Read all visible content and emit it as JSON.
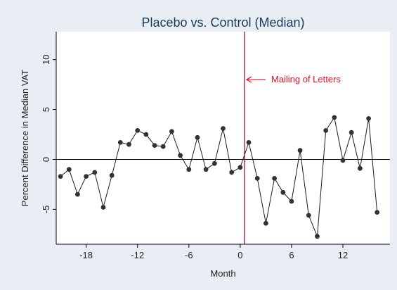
{
  "chart_data": {
    "type": "line",
    "title": "Placebo vs. Control (Median)",
    "xlabel": "Month",
    "ylabel": "Percent Difference in Median VAT",
    "xlim": [
      -21.5,
      17.5
    ],
    "ylim": [
      -8.5,
      12.8
    ],
    "xticks": [
      -18,
      -12,
      -6,
      0,
      6,
      12
    ],
    "yticks": [
      -5,
      0,
      5,
      10
    ],
    "grid": false,
    "reference_lines": {
      "horizontal_y": 0,
      "vertical_x": 0.5
    },
    "annotation": {
      "text": "Mailing of Letters",
      "x": 0.5,
      "y": 8
    },
    "series": [
      {
        "x": [
          -21,
          -20,
          -19,
          -18,
          -17,
          -16,
          -15,
          -14,
          -13,
          -12,
          -11,
          -10,
          -9,
          -8,
          -7,
          -6,
          -5,
          -4,
          -3,
          -2,
          -1,
          0,
          1,
          2,
          3,
          4,
          5,
          6,
          7,
          8,
          9,
          10,
          11,
          12,
          13,
          14,
          15,
          16,
          17
        ],
        "values": [
          -1.7,
          -1.0,
          -3.5,
          -1.7,
          -1.3,
          -4.8,
          -1.6,
          1.7,
          1.5,
          2.9,
          2.5,
          1.4,
          1.3,
          2.8,
          0.4,
          -1.0,
          2.2,
          -1.0,
          -0.4,
          3.1,
          -1.3,
          -0.8,
          1.7,
          -1.9,
          -6.4,
          -1.9,
          -3.3,
          -4.2,
          0.9,
          -5.6,
          -7.7,
          2.9,
          4.2,
          -0.1,
          2.7,
          -0.9,
          4.1,
          -5.3,
          null
        ]
      }
    ]
  },
  "colors": {
    "background": "#e8eef3",
    "plot_area": "#ffffff",
    "line": "#1a1a1a",
    "marker": "#333333",
    "vertical_line": "#990033",
    "annotation": "#e0102a",
    "title": "#1a3a5a"
  }
}
